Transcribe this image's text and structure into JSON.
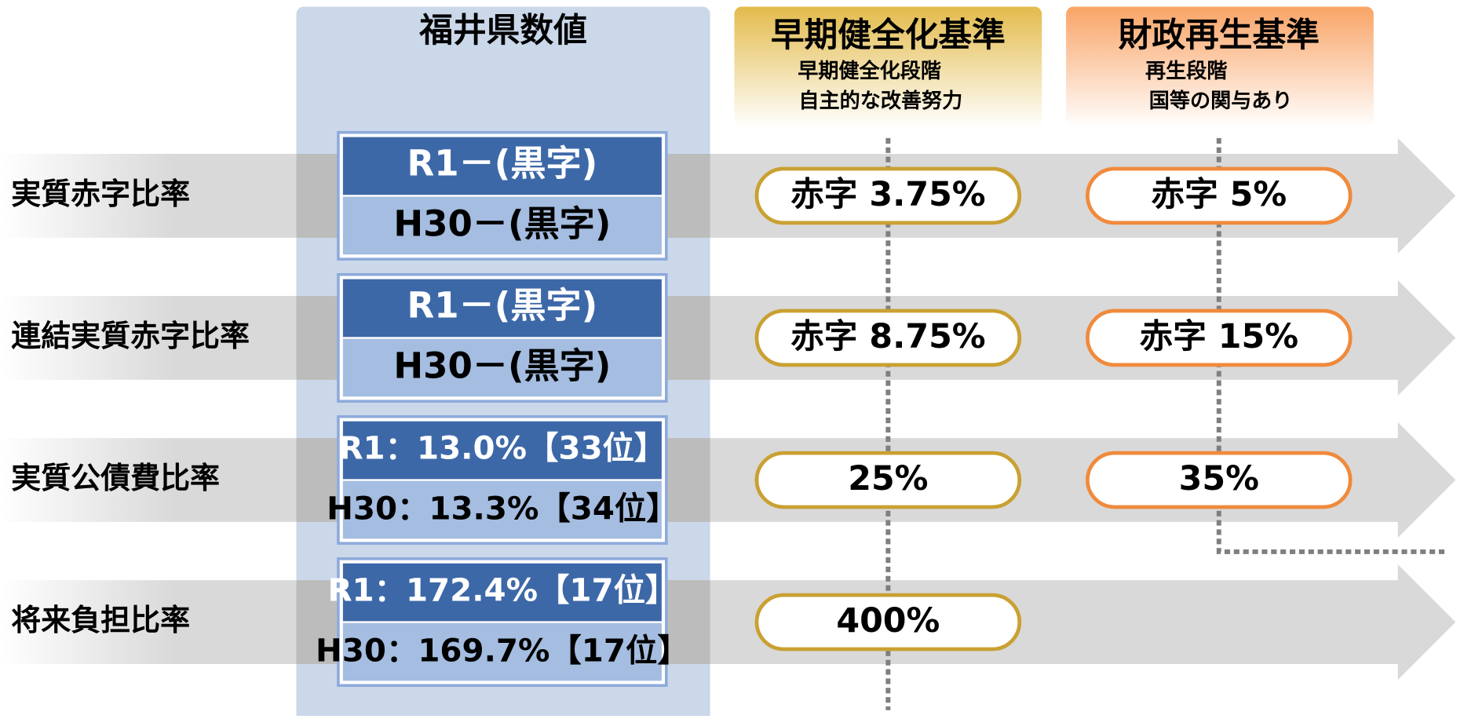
{
  "columns": {
    "fukui": {
      "title": "福井県数値"
    },
    "early": {
      "title": "早期健全化基準",
      "lines": [
        "早期健全化段階",
        "自主的な改善努力"
      ]
    },
    "rebuild": {
      "title": "財政再生基準",
      "lines": [
        "再生段階",
        "国等の関与あり"
      ]
    }
  },
  "rows": [
    {
      "label": "実質赤字比率",
      "r1": "R1－(黒字)",
      "h30": "H30－(黒字)",
      "early": "赤字 3.75%",
      "rebuild": "赤字 5%"
    },
    {
      "label": "連結実質赤字比率",
      "r1": "R1－(黒字)",
      "h30": "H30－(黒字)",
      "early": "赤字 8.75%",
      "rebuild": "赤字 15%"
    },
    {
      "label": "実質公債費比率",
      "r1": "R1：13.0%【33位】",
      "h30": "H30：13.3%【34位】",
      "early": "25%",
      "rebuild": "35%"
    },
    {
      "label": "将来負担比率",
      "r1": "R1：172.4%【17位】",
      "h30": "H30：169.7%【17位】",
      "early": "400%"
    }
  ]
}
